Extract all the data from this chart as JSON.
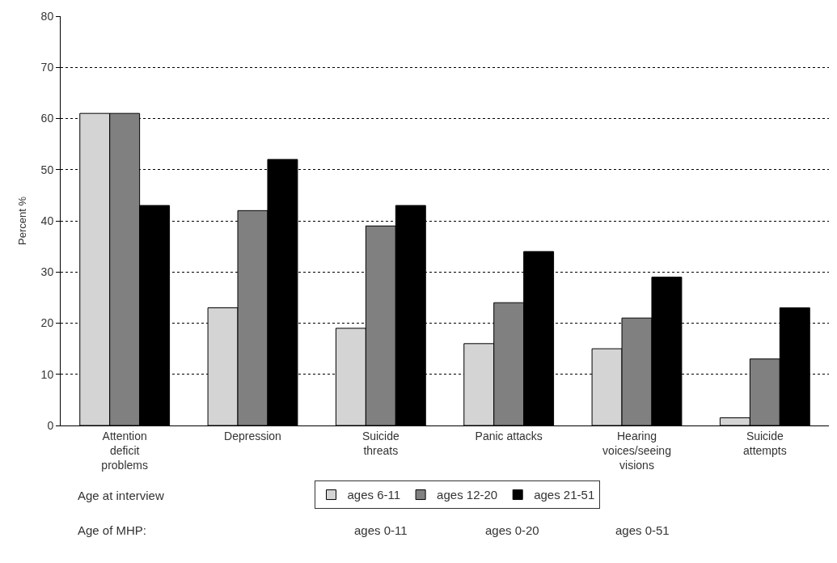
{
  "chart_data": {
    "type": "bar",
    "ylabel": "Percent %",
    "legend_title": "Age at interview",
    "categories": [
      "Attention\ndeficit\nproblems",
      "Depression",
      "Suicide\nthreats",
      "Panic attacks",
      "Hearing\nvoices/seeing\nvisions",
      "Suicide\nattempts"
    ],
    "series": [
      {
        "name": "ages 6-11",
        "color": "#d4d4d4",
        "values": [
          61,
          23,
          19,
          16,
          15,
          1.5
        ]
      },
      {
        "name": "ages 12-20",
        "color": "#808080",
        "values": [
          61,
          42,
          39,
          24,
          21,
          13
        ]
      },
      {
        "name": "ages 21-51",
        "color": "#000000",
        "values": [
          43,
          52,
          43,
          34,
          29,
          23
        ]
      }
    ],
    "ylim": [
      0,
      80
    ],
    "yticks": [
      0,
      10,
      20,
      30,
      40,
      50,
      60,
      70,
      80
    ],
    "grid": "y",
    "legend": "bottom",
    "annotations": [
      "Age of MHP:",
      "ages 0-11",
      "ages 0-20",
      "ages 0-51"
    ]
  }
}
